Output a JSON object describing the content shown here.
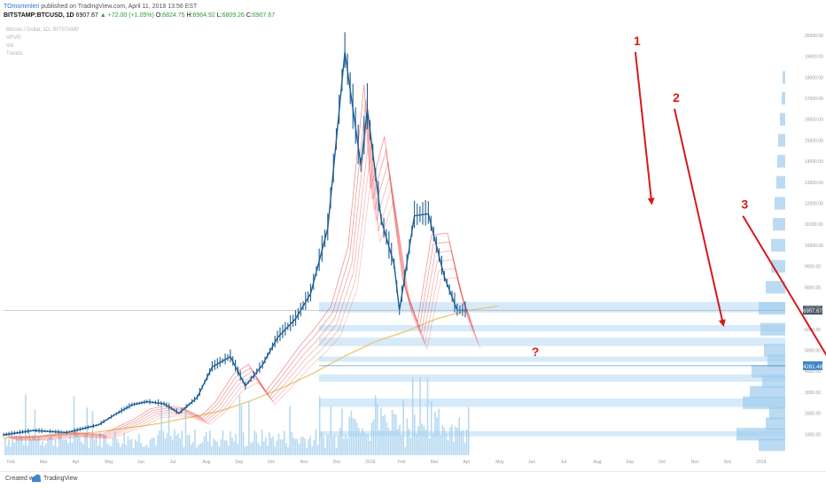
{
  "header": {
    "author": "TOmommleri",
    "published_text": "published on TradingView.com, April 11, 2018 13:56 EST",
    "symbol": "BITSTAMP:BTCUSD, 1D",
    "last": "6907.67",
    "change": "▲ +72.00 (+1.05%)",
    "open_label": "O:",
    "open": "6824.75",
    "high_label": "H:",
    "high": "6964.92",
    "low_label": "L:",
    "low": "6809.26",
    "close_label": "C:",
    "close": "6907.67"
  },
  "legend": {
    "line1": "Bitcoin / Dollar, 1D, BITSTAMP",
    "line2": "VPVR",
    "line3": "Vol",
    "line4": "Trends"
  },
  "footer": {
    "created": "Created with",
    "brand": "TradingView"
  },
  "colors": {
    "candle": "#1f5e92",
    "ribbon": "#e83b3b",
    "ma200": "#e8c46a",
    "volume": "#9fccec",
    "zone": "#cfe6f8",
    "arrow": "#d61a1a",
    "axis_text": "#9a9a9a",
    "price_badge": "#4a5866",
    "support_badge": "#3f86c8"
  },
  "chart_data": {
    "type": "line",
    "title": "Bitcoin / Dollar, 1D, BITSTAMP",
    "x": [
      "2017-02-01",
      "2017-03-01",
      "2017-04-01",
      "2017-05-01",
      "2017-05-15",
      "2017-06-01",
      "2017-06-15",
      "2017-07-01",
      "2017-07-15",
      "2017-08-01",
      "2017-08-15",
      "2017-09-01",
      "2017-09-15",
      "2017-10-01",
      "2017-10-15",
      "2017-11-01",
      "2017-11-15",
      "2017-12-01",
      "2017-12-17",
      "2018-01-01",
      "2018-01-07",
      "2018-01-20",
      "2018-02-01",
      "2018-02-06",
      "2018-02-20",
      "2018-03-05",
      "2018-03-20",
      "2018-04-01",
      "2018-04-11"
    ],
    "series": [
      {
        "values": [
          970,
          1180,
          1080,
          1450,
          1900,
          2400,
          2550,
          2450,
          2000,
          2750,
          4200,
          4700,
          3300,
          4300,
          5600,
          6500,
          7700,
          10800,
          19200,
          13800,
          16500,
          11200,
          9100,
          6900,
          11400,
          11500,
          8500,
          6900,
          6900
        ]
      }
    ],
    "xlabel": "",
    "ylabel": "",
    "ylim": [
      0,
      20000
    ],
    "y_ticks": [
      1000,
      2000,
      3000,
      4000,
      5000,
      6000,
      7000,
      8000,
      9000,
      10000,
      11000,
      12000,
      13000,
      14000,
      15000,
      16000,
      17000,
      18000,
      19000,
      20000
    ],
    "x_ticks": [
      "Feb",
      "Mar",
      "Apr",
      "May",
      "Jun",
      "Jul",
      "Aug",
      "Sep",
      "Oct",
      "Nov",
      "Dec",
      "2018",
      "Feb",
      "Mar",
      "Apr",
      "May",
      "Jun",
      "Jul",
      "Aug",
      "Sep",
      "Oct",
      "Nov",
      "Dec",
      "2019"
    ],
    "current_price": {
      "value": 6907.67,
      "label": "6907.67"
    },
    "support": {
      "value": 4261.48,
      "label": "4261.48"
    },
    "annotations": [
      {
        "label": "1",
        "from": [
          19.4,
          19200
        ],
        "to": [
          19.9,
          12000
        ]
      },
      {
        "label": "2",
        "from": [
          20.6,
          16500
        ],
        "to": [
          22.1,
          6200
        ]
      },
      {
        "label": "3",
        "from": [
          22.7,
          11400
        ],
        "to": [
          25.6,
          3900
        ]
      },
      {
        "label": "?",
        "from": null,
        "to": null
      }
    ],
    "zones": [
      [
        6800,
        7300
      ],
      [
        5900,
        6200
      ],
      [
        5200,
        5600
      ],
      [
        4450,
        4700
      ],
      [
        3500,
        3850
      ],
      [
        2300,
        2700
      ],
      [
        900,
        1150
      ]
    ],
    "grid": false
  }
}
